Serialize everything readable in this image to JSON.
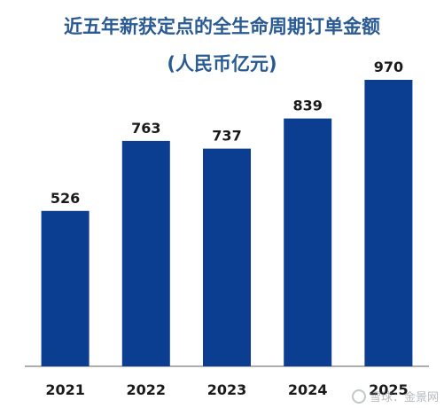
{
  "chart_data": {
    "type": "bar",
    "title": "近五年新获定点的全生命周期订单金额",
    "subtitle": "(人民币亿元)",
    "categories": [
      "2021",
      "2022",
      "2023",
      "2024",
      "2025"
    ],
    "values": [
      526,
      763,
      737,
      839,
      970
    ],
    "data_labels": [
      "526",
      "763",
      "737",
      "839",
      "970"
    ],
    "ylim": [
      0,
      1000
    ],
    "grid": false,
    "legend": "none",
    "bar_color": "#0b3e91",
    "title_color": "#2a5a93"
  },
  "watermark": {
    "text": "雪球：金景网"
  }
}
